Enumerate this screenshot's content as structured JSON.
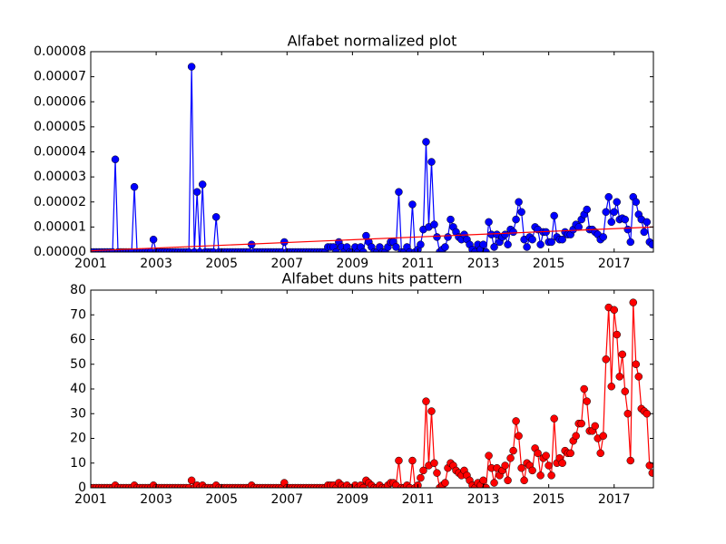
{
  "chart_data": [
    {
      "type": "line",
      "title": "Alfabet normalized plot",
      "x": [
        2001,
        2001.083,
        2001.167,
        2001.25,
        2001.333,
        2001.417,
        2001.5,
        2001.583,
        2001.667,
        2001.75,
        2001.833,
        2001.917,
        2002,
        2002.083,
        2002.167,
        2002.25,
        2002.333,
        2002.417,
        2002.5,
        2002.583,
        2002.667,
        2002.75,
        2002.833,
        2002.917,
        2003,
        2003.083,
        2003.167,
        2003.25,
        2003.333,
        2003.417,
        2003.5,
        2003.583,
        2003.667,
        2003.75,
        2003.833,
        2003.917,
        2004,
        2004.083,
        2004.167,
        2004.25,
        2004.333,
        2004.417,
        2004.5,
        2004.583,
        2004.667,
        2004.75,
        2004.833,
        2004.917,
        2005,
        2005.083,
        2005.167,
        2005.25,
        2005.333,
        2005.417,
        2005.5,
        2005.583,
        2005.667,
        2005.75,
        2005.833,
        2005.917,
        2006,
        2006.083,
        2006.167,
        2006.25,
        2006.333,
        2006.417,
        2006.5,
        2006.583,
        2006.667,
        2006.75,
        2006.833,
        2006.917,
        2007,
        2007.083,
        2007.167,
        2007.25,
        2007.333,
        2007.417,
        2007.5,
        2007.583,
        2007.667,
        2007.75,
        2007.833,
        2007.917,
        2008,
        2008.083,
        2008.167,
        2008.25,
        2008.333,
        2008.417,
        2008.5,
        2008.583,
        2008.667,
        2008.75,
        2008.833,
        2008.917,
        2009,
        2009.083,
        2009.167,
        2009.25,
        2009.333,
        2009.417,
        2009.5,
        2009.583,
        2009.667,
        2009.75,
        2009.833,
        2009.917,
        2010,
        2010.083,
        2010.167,
        2010.25,
        2010.333,
        2010.417,
        2010.5,
        2010.583,
        2010.667,
        2010.75,
        2010.833,
        2010.917,
        2011,
        2011.083,
        2011.167,
        2011.25,
        2011.333,
        2011.417,
        2011.5,
        2011.583,
        2011.667,
        2011.75,
        2011.833,
        2011.917,
        2012,
        2012.083,
        2012.167,
        2012.25,
        2012.333,
        2012.417,
        2012.5,
        2012.583,
        2012.667,
        2012.75,
        2012.833,
        2012.917,
        2013,
        2013.083,
        2013.167,
        2013.25,
        2013.333,
        2013.417,
        2013.5,
        2013.583,
        2013.667,
        2013.75,
        2013.833,
        2013.917,
        2014,
        2014.083,
        2014.167,
        2014.25,
        2014.333,
        2014.417,
        2014.5,
        2014.583,
        2014.667,
        2014.75,
        2014.833,
        2014.917,
        2015,
        2015.083,
        2015.167,
        2015.25,
        2015.333,
        2015.417,
        2015.5,
        2015.583,
        2015.667,
        2015.75,
        2015.833,
        2015.917,
        2016,
        2016.083,
        2016.167,
        2016.25,
        2016.333,
        2016.417,
        2016.5,
        2016.583,
        2016.667,
        2016.75,
        2016.833,
        2016.917,
        2017,
        2017.083,
        2017.167,
        2017.25,
        2017.333,
        2017.417,
        2017.5,
        2017.583,
        2017.667,
        2017.75,
        2017.833,
        2017.917,
        2018,
        2018.083,
        2018.167
      ],
      "series": [
        {
          "color": "#0000ff",
          "marker": "o",
          "values": [
            0,
            0,
            0,
            0,
            0,
            0,
            0,
            0,
            0,
            3.7e-05,
            0,
            0,
            0,
            0,
            0,
            0,
            2.6e-05,
            0,
            0,
            0,
            0,
            0,
            0,
            5e-06,
            0,
            0,
            0,
            0,
            0,
            0,
            0,
            0,
            0,
            0,
            0,
            0,
            0,
            7.4e-05,
            0,
            2.4e-05,
            0,
            2.7e-05,
            0,
            0,
            0,
            0,
            1.4e-05,
            0,
            0,
            0,
            0,
            0,
            0,
            0,
            0,
            0,
            0,
            0,
            0,
            3e-06,
            0,
            0,
            0,
            0,
            0,
            0,
            0,
            0,
            0,
            0,
            0,
            4e-06,
            0,
            0,
            0,
            0,
            0,
            0,
            0,
            0,
            0,
            0,
            0,
            0,
            0,
            0,
            0,
            2e-06,
            2e-06,
            2e-06,
            0,
            4e-06,
            2e-06,
            0,
            2e-06,
            0,
            0,
            2e-06,
            0,
            2e-06,
            0,
            6.5e-06,
            4e-06,
            2e-06,
            0,
            0,
            2e-06,
            0,
            0,
            2e-06,
            4e-06,
            4e-06,
            2e-06,
            2.4e-05,
            0,
            0,
            2e-06,
            0,
            1.9e-05,
            0,
            1e-06,
            3e-06,
            9e-06,
            4.4e-05,
            1e-05,
            3.6e-05,
            1.1e-05,
            6e-06,
            0,
            1e-06,
            2e-06,
            6e-06,
            1.3e-05,
            1e-05,
            8e-06,
            6e-06,
            5e-06,
            7e-06,
            5e-06,
            3e-06,
            1e-06,
            0,
            3e-06,
            1e-06,
            3e-06,
            0,
            1.2e-05,
            7e-06,
            2e-06,
            7e-06,
            4e-06,
            6e-06,
            7e-06,
            3e-06,
            9e-06,
            8e-06,
            1.3e-05,
            2e-05,
            1.6e-05,
            5e-06,
            2e-06,
            6e-06,
            5e-06,
            1e-05,
            9e-06,
            3e-06,
            8e-06,
            8e-06,
            4e-06,
            4e-06,
            1.45e-05,
            6e-06,
            5e-06,
            5e-06,
            8e-06,
            7e-06,
            7e-06,
            9e-06,
            1.1e-05,
            1e-05,
            1.3e-05,
            1.5e-05,
            1.7e-05,
            9e-06,
            9e-06,
            8e-06,
            7e-06,
            5e-06,
            6e-06,
            1.6e-05,
            2.2e-05,
            1.2e-05,
            1.6e-05,
            2e-05,
            1.3e-05,
            1.35e-05,
            1.3e-05,
            9e-06,
            4e-06,
            2.2e-05,
            2e-05,
            1.5e-05,
            1.3e-05,
            8e-06,
            1.2e-05,
            4e-06,
            3e-06
          ]
        },
        {
          "color": "#ff0000",
          "x": [
            2001,
            2018.2
          ],
          "values": [
            5e-07,
            1e-05
          ]
        }
      ],
      "xlim": [
        2001,
        2018.2
      ],
      "xticks": [
        2001,
        2003,
        2005,
        2007,
        2009,
        2011,
        2013,
        2015,
        2017
      ],
      "ylim": [
        0,
        8e-05
      ],
      "yticks": [
        {
          "value": 0,
          "label": "0.00000"
        },
        {
          "value": 1e-05,
          "label": "0.00001"
        },
        {
          "value": 2e-05,
          "label": "0.00002"
        },
        {
          "value": 3e-05,
          "label": "0.00003"
        },
        {
          "value": 4e-05,
          "label": "0.00004"
        },
        {
          "value": 5e-05,
          "label": "0.00005"
        },
        {
          "value": 6e-05,
          "label": "0.00006"
        },
        {
          "value": 7e-05,
          "label": "0.00007"
        },
        {
          "value": 8e-05,
          "label": "0.00008"
        }
      ]
    },
    {
      "type": "line",
      "title": "Alfabet duns hits pattern",
      "x": [
        2001,
        2001.083,
        2001.167,
        2001.25,
        2001.333,
        2001.417,
        2001.5,
        2001.583,
        2001.667,
        2001.75,
        2001.833,
        2001.917,
        2002,
        2002.083,
        2002.167,
        2002.25,
        2002.333,
        2002.417,
        2002.5,
        2002.583,
        2002.667,
        2002.75,
        2002.833,
        2002.917,
        2003,
        2003.083,
        2003.167,
        2003.25,
        2003.333,
        2003.417,
        2003.5,
        2003.583,
        2003.667,
        2003.75,
        2003.833,
        2003.917,
        2004,
        2004.083,
        2004.167,
        2004.25,
        2004.333,
        2004.417,
        2004.5,
        2004.583,
        2004.667,
        2004.75,
        2004.833,
        2004.917,
        2005,
        2005.083,
        2005.167,
        2005.25,
        2005.333,
        2005.417,
        2005.5,
        2005.583,
        2005.667,
        2005.75,
        2005.833,
        2005.917,
        2006,
        2006.083,
        2006.167,
        2006.25,
        2006.333,
        2006.417,
        2006.5,
        2006.583,
        2006.667,
        2006.75,
        2006.833,
        2006.917,
        2007,
        2007.083,
        2007.167,
        2007.25,
        2007.333,
        2007.417,
        2007.5,
        2007.583,
        2007.667,
        2007.75,
        2007.833,
        2007.917,
        2008,
        2008.083,
        2008.167,
        2008.25,
        2008.333,
        2008.417,
        2008.5,
        2008.583,
        2008.667,
        2008.75,
        2008.833,
        2008.917,
        2009,
        2009.083,
        2009.167,
        2009.25,
        2009.333,
        2009.417,
        2009.5,
        2009.583,
        2009.667,
        2009.75,
        2009.833,
        2009.917,
        2010,
        2010.083,
        2010.167,
        2010.25,
        2010.333,
        2010.417,
        2010.5,
        2010.583,
        2010.667,
        2010.75,
        2010.833,
        2010.917,
        2011,
        2011.083,
        2011.167,
        2011.25,
        2011.333,
        2011.417,
        2011.5,
        2011.583,
        2011.667,
        2011.75,
        2011.833,
        2011.917,
        2012,
        2012.083,
        2012.167,
        2012.25,
        2012.333,
        2012.417,
        2012.5,
        2012.583,
        2012.667,
        2012.75,
        2012.833,
        2012.917,
        2013,
        2013.083,
        2013.167,
        2013.25,
        2013.333,
        2013.417,
        2013.5,
        2013.583,
        2013.667,
        2013.75,
        2013.833,
        2013.917,
        2014,
        2014.083,
        2014.167,
        2014.25,
        2014.333,
        2014.417,
        2014.5,
        2014.583,
        2014.667,
        2014.75,
        2014.833,
        2014.917,
        2015,
        2015.083,
        2015.167,
        2015.25,
        2015.333,
        2015.417,
        2015.5,
        2015.583,
        2015.667,
        2015.75,
        2015.833,
        2015.917,
        2016,
        2016.083,
        2016.167,
        2016.25,
        2016.333,
        2016.417,
        2016.5,
        2016.583,
        2016.667,
        2016.75,
        2016.833,
        2016.917,
        2017,
        2017.083,
        2017.167,
        2017.25,
        2017.333,
        2017.417,
        2017.5,
        2017.583,
        2017.667,
        2017.75,
        2017.833,
        2017.917,
        2018,
        2018.083,
        2018.167
      ],
      "series": [
        {
          "color": "#ff0000",
          "marker": "o",
          "values": [
            0,
            0,
            0,
            0,
            0,
            0,
            0,
            0,
            0,
            1,
            0,
            0,
            0,
            0,
            0,
            0,
            1,
            0,
            0,
            0,
            0,
            0,
            0,
            1,
            0,
            0,
            0,
            0,
            0,
            0,
            0,
            0,
            0,
            0,
            0,
            0,
            0,
            3,
            0,
            1,
            0,
            1,
            0,
            0,
            0,
            0,
            1,
            0,
            0,
            0,
            0,
            0,
            0,
            0,
            0,
            0,
            0,
            0,
            0,
            1,
            0,
            0,
            0,
            0,
            0,
            0,
            0,
            0,
            0,
            0,
            0,
            2,
            0,
            0,
            0,
            0,
            0,
            0,
            0,
            0,
            0,
            0,
            0,
            0,
            0,
            0,
            0,
            1,
            1,
            1,
            0,
            2,
            1,
            0,
            1,
            0,
            0,
            1,
            0,
            1,
            0,
            3,
            2,
            1,
            0,
            0,
            1,
            0,
            0,
            1,
            2,
            2,
            1,
            11,
            0,
            0,
            1,
            0,
            11,
            0,
            1,
            4,
            7,
            35,
            9,
            31,
            10,
            6,
            0,
            1,
            2,
            8,
            10,
            9,
            7,
            6,
            5,
            7,
            5,
            3,
            1,
            0,
            2,
            1,
            3,
            0,
            13,
            8,
            2,
            8,
            5,
            7,
            9,
            3,
            12,
            15,
            27,
            21,
            8,
            3,
            10,
            9,
            7,
            16,
            14,
            5,
            12,
            13,
            9,
            5,
            28,
            10,
            12,
            10,
            15,
            14,
            14,
            19,
            21,
            26,
            26,
            40,
            35,
            23,
            23,
            25,
            20,
            14,
            21,
            52,
            73,
            41,
            72,
            62,
            45,
            54,
            39,
            30,
            11,
            75,
            50,
            45,
            32,
            31,
            30,
            9,
            6
          ]
        }
      ],
      "xlim": [
        2001,
        2018.2
      ],
      "xticks": [
        2001,
        2003,
        2005,
        2007,
        2009,
        2011,
        2013,
        2015,
        2017
      ],
      "ylim": [
        0,
        80
      ],
      "yticks": [
        0,
        10,
        20,
        30,
        40,
        50,
        60,
        70,
        80
      ]
    }
  ]
}
